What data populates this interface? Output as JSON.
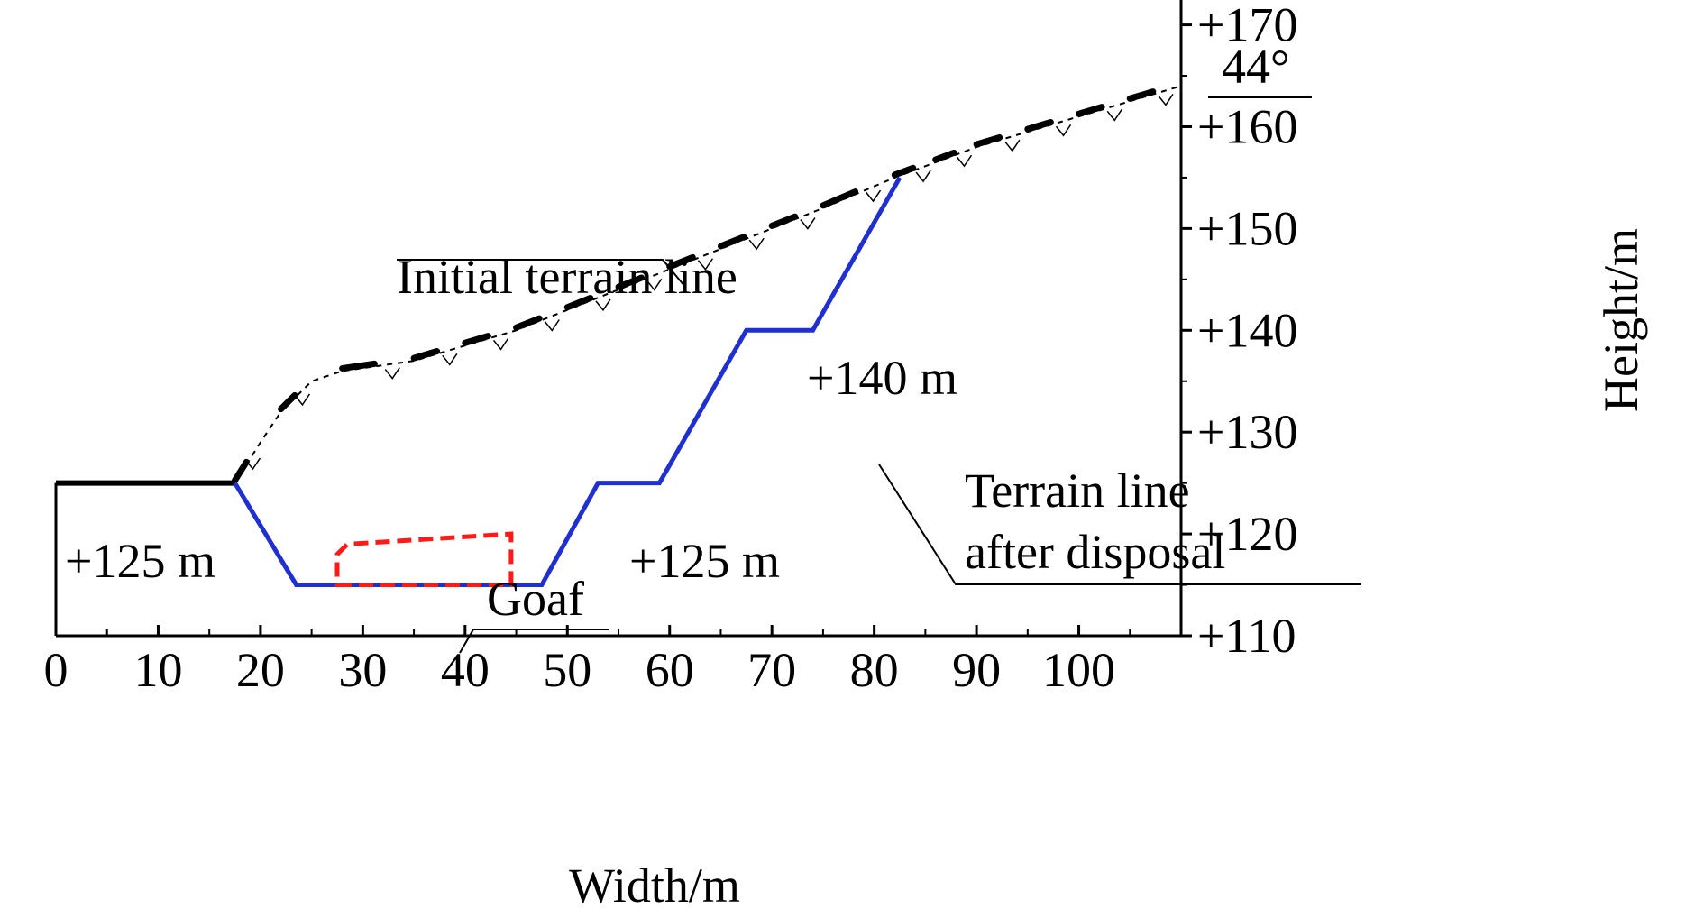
{
  "axes": {
    "x_title": "Width/m",
    "y_title": "Height/m",
    "x_ticks": [
      {
        "value": 0,
        "label": "0"
      },
      {
        "value": 10,
        "label": "10"
      },
      {
        "value": 20,
        "label": "20"
      },
      {
        "value": 30,
        "label": "30"
      },
      {
        "value": 40,
        "label": "40"
      },
      {
        "value": 50,
        "label": "50"
      },
      {
        "value": 60,
        "label": "60"
      },
      {
        "value": 70,
        "label": "70"
      },
      {
        "value": 80,
        "label": "80"
      },
      {
        "value": 90,
        "label": "90"
      },
      {
        "value": 100,
        "label": "100"
      }
    ],
    "y_ticks": [
      {
        "value": 110,
        "label": "+110"
      },
      {
        "value": 120,
        "label": "+120"
      },
      {
        "value": 130,
        "label": "+130"
      },
      {
        "value": 140,
        "label": "+140"
      },
      {
        "value": 150,
        "label": "+150"
      },
      {
        "value": 160,
        "label": "+160"
      },
      {
        "value": 170,
        "label": "+170"
      }
    ],
    "x_range": [
      0,
      110
    ],
    "y_range": [
      110,
      172
    ]
  },
  "labels": {
    "angle": "44°",
    "initial_terrain": "Initial terrain line",
    "elev_140": "+140 m",
    "after_disposal_1": "Terrain line",
    "after_disposal_2": "after disposal",
    "elev_125_left": "+125 m",
    "elev_125_mid": "+125 m",
    "goaf": "Goaf"
  },
  "colors": {
    "disposal_line": "#1f2fd0",
    "goaf": "#ff1a1a",
    "terrain": "#000000"
  },
  "chart_data": {
    "type": "line",
    "xlabel": "Width/m",
    "ylabel": "Height/m",
    "xlim": [
      0,
      110
    ],
    "ylim": [
      110,
      172
    ],
    "series": [
      {
        "name": "Initial terrain line",
        "points": [
          [
            0,
            125
          ],
          [
            17.5,
            125
          ],
          [
            20,
            129
          ],
          [
            22,
            132
          ],
          [
            25,
            135
          ],
          [
            28,
            136
          ],
          [
            35,
            137
          ],
          [
            45,
            140
          ],
          [
            55,
            144
          ],
          [
            65,
            148
          ],
          [
            75,
            152
          ],
          [
            82,
            155
          ],
          [
            90,
            158
          ],
          [
            100,
            161
          ],
          [
            110,
            164
          ]
        ]
      },
      {
        "name": "Terrain line after disposal",
        "points": [
          [
            17.5,
            125
          ],
          [
            23.5,
            115
          ],
          [
            47.5,
            115
          ],
          [
            53,
            125
          ],
          [
            59,
            125
          ],
          [
            67.5,
            140
          ],
          [
            74,
            140
          ],
          [
            82.5,
            155
          ]
        ]
      },
      {
        "name": "Goaf",
        "points": [
          [
            27.5,
            115
          ],
          [
            44.5,
            115
          ],
          [
            44.5,
            120
          ],
          [
            28.5,
            119
          ],
          [
            27.5,
            118
          ]
        ]
      }
    ]
  }
}
